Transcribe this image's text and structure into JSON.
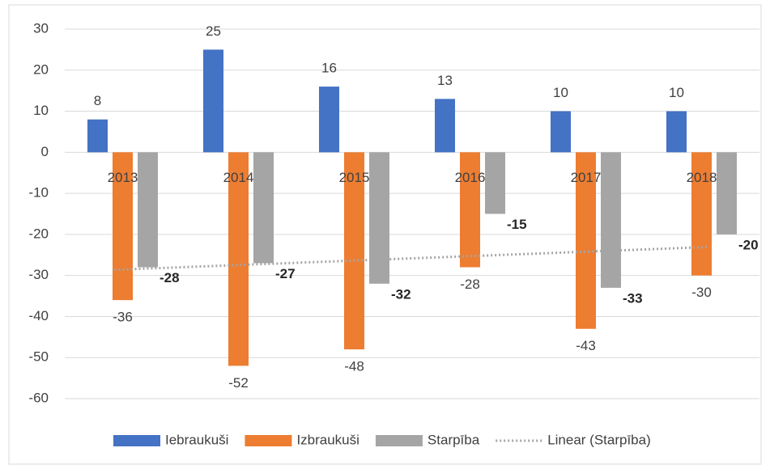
{
  "chart_data": {
    "type": "bar",
    "categories": [
      "2013",
      "2014",
      "2015",
      "2016",
      "2017",
      "2018"
    ],
    "series": [
      {
        "name": "Iebraukuši",
        "color": "#4472c4",
        "values": [
          8,
          25,
          16,
          13,
          10,
          10
        ]
      },
      {
        "name": "Izbraukuši",
        "color": "#ed7d31",
        "values": [
          -36,
          -52,
          -48,
          -28,
          -43,
          -30
        ]
      },
      {
        "name": "Starpība",
        "color": "#a5a5a5",
        "values": [
          -28,
          -27,
          -32,
          -15,
          -33,
          -20
        ]
      }
    ],
    "trendline": {
      "name": "Linear (Starpība)",
      "type": "linear",
      "of": "Starpība",
      "color": "#a5a5a5"
    },
    "ylim": [
      -60,
      30
    ],
    "yticks": [
      -60,
      -50,
      -40,
      -30,
      -20,
      -10,
      0,
      10,
      20,
      30
    ],
    "grid": true,
    "legend": "bottom"
  }
}
